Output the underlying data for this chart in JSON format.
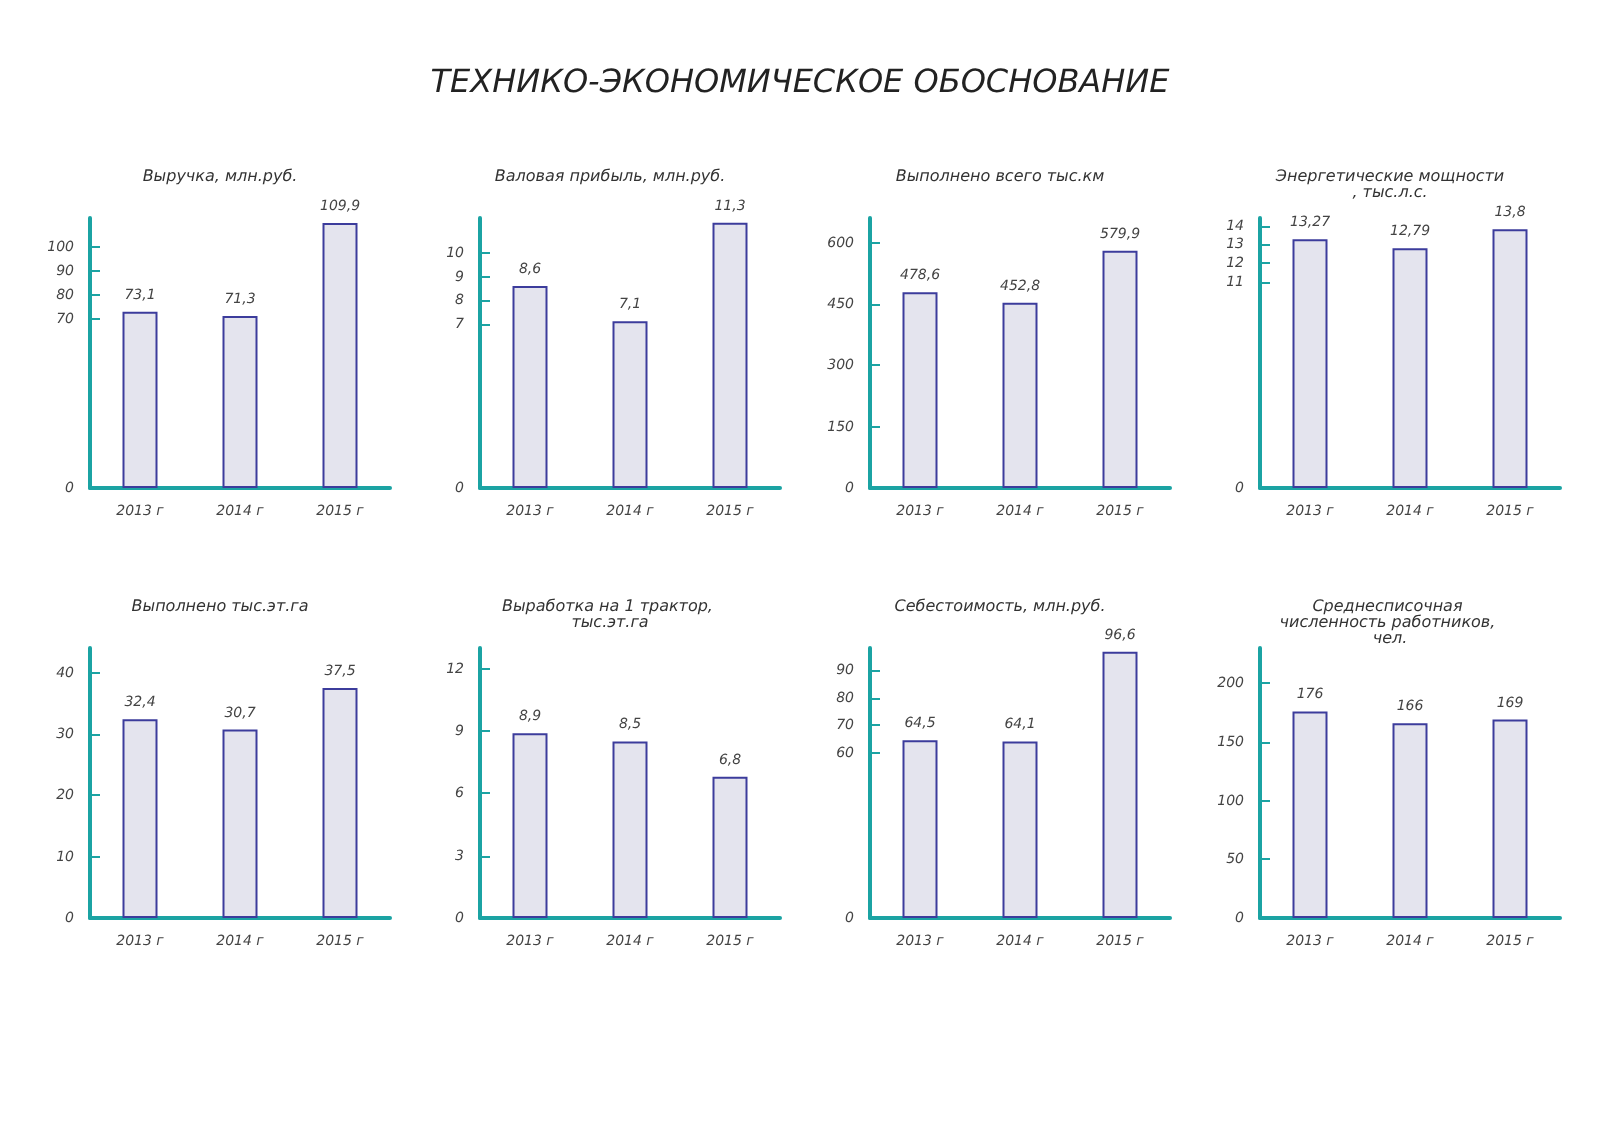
{
  "chart_data": [
    {
      "type": "other",
      "title": "ТЕХНИКО-ЭКОНОМИЧЕСКОЕ ОБОСНОВАНИЕ"
    },
    {
      "type": "bar",
      "title": "Выручка, млн.руб.",
      "categories": [
        "2013 г",
        "2014 г",
        "2015 г"
      ],
      "values": [
        73.1,
        71.3,
        109.9
      ],
      "value_labels": [
        "73,1",
        "71,3",
        "109,9"
      ],
      "color": "#e4e4ee",
      "ylim": [
        0,
        112
      ],
      "yticks": [
        0,
        70,
        80,
        90,
        100
      ]
    },
    {
      "type": "bar",
      "title": "Валовая прибыль, млн.руб.",
      "categories": [
        "2013 г",
        "2014 г",
        "2015 г"
      ],
      "values": [
        8.6,
        7.1,
        11.3
      ],
      "value_labels": [
        "8,6",
        "7,1",
        "11,3"
      ],
      "color": "#e4e4ee",
      "ylim": [
        0,
        11.5
      ],
      "yticks": [
        0,
        7,
        8,
        9,
        10
      ]
    },
    {
      "type": "bar",
      "title": "Выполнено всего тыс.км",
      "categories": [
        "2013 г",
        "2014 г",
        "2015 г"
      ],
      "values": [
        478.6,
        452.8,
        579.9
      ],
      "value_labels": [
        "478,6",
        "452,8",
        "579,9"
      ],
      "color": "#e4e4ee",
      "ylim": [
        0,
        660
      ],
      "yticks": [
        0,
        150,
        300,
        450,
        600
      ]
    },
    {
      "type": "bar",
      "title": "Энергетические мощности, тыс.л.с.",
      "categories": [
        "2013 г",
        "2014 г",
        "2015 г"
      ],
      "values": [
        13.27,
        12.79,
        13.8
      ],
      "value_labels": [
        "13,27",
        "12,79",
        "13,8"
      ],
      "color": "#e4e4ee",
      "ylim": [
        0,
        14.4
      ],
      "yticks": [
        0,
        11,
        12,
        13,
        14
      ]
    },
    {
      "type": "bar",
      "title": "Выполнено тыс.эт.га",
      "categories": [
        "2013 г",
        "2014 г",
        "2015 г"
      ],
      "values": [
        32.4,
        30.7,
        37.5
      ],
      "value_labels": [
        "32,4",
        "30,7",
        "37,5"
      ],
      "color": "#e4e4ee",
      "ylim": [
        0,
        44
      ],
      "yticks": [
        0,
        10,
        20,
        30,
        40
      ]
    },
    {
      "type": "bar",
      "title": "Выработка на 1 трактор, тыс.эт.га",
      "categories": [
        "2013 г",
        "2014 г",
        "2015 г"
      ],
      "values": [
        8.9,
        8.5,
        6.8
      ],
      "value_labels": [
        "8,9",
        "8,5",
        "6,8"
      ],
      "color": "#e4e4ee",
      "ylim": [
        0,
        13
      ],
      "yticks": [
        0,
        3,
        6,
        9,
        12
      ]
    },
    {
      "type": "bar",
      "title": "Себестоимость, млн.руб.",
      "categories": [
        "2013 г",
        "2014 г",
        "2015 г"
      ],
      "values": [
        64.5,
        64.1,
        96.6
      ],
      "value_labels": [
        "64,5",
        "64,1",
        "96,6"
      ],
      "color": "#e4e4ee",
      "ylim": [
        0,
        98
      ],
      "yticks": [
        0,
        60,
        70,
        80,
        90
      ]
    },
    {
      "type": "bar",
      "title": "Среднесписочная численность работников, чел.",
      "categories": [
        "2013 г",
        "2014 г",
        "2015 г"
      ],
      "values": [
        176,
        166,
        169
      ],
      "data_labels": true,
      "color": "#e4e4ee",
      "ylim": [
        0,
        230
      ],
      "yticks": [
        0,
        50,
        100,
        150,
        200
      ]
    }
  ]
}
